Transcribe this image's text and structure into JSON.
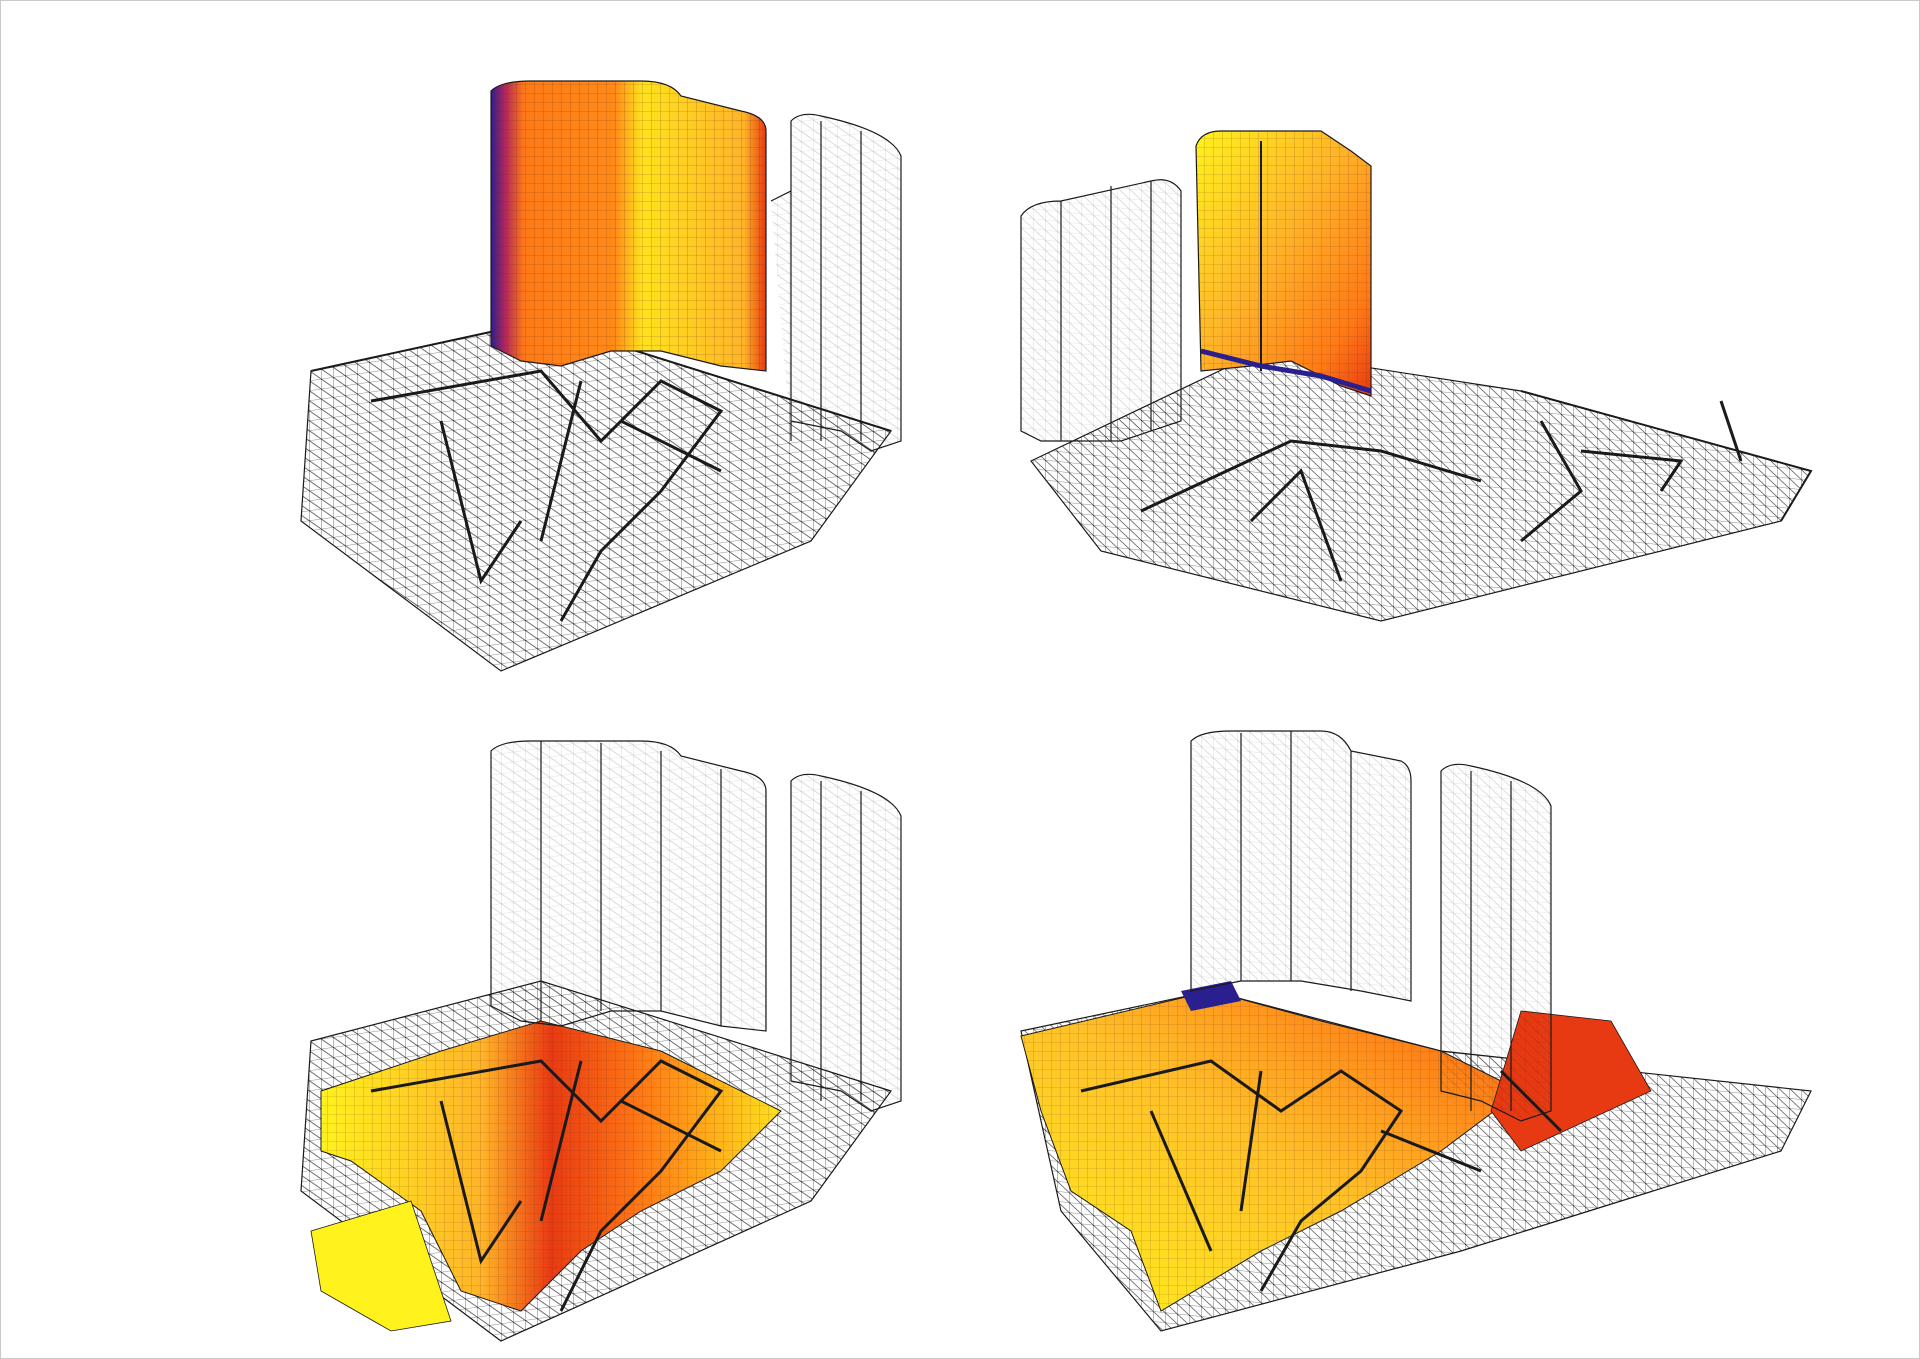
{
  "figure": {
    "panels": [
      {
        "id": "tl",
        "view": "front",
        "highlight": "tall-slab-facade"
      },
      {
        "id": "tr",
        "view": "rear",
        "highlight": "tall-slab-facade"
      },
      {
        "id": "bl",
        "view": "front",
        "highlight": "ground-paths"
      },
      {
        "id": "br",
        "view": "rear",
        "highlight": "ground-paths"
      }
    ],
    "colormap": [
      "#2a1f8f",
      "#b0255f",
      "#e83a12",
      "#ff7a16",
      "#ffb428",
      "#fff21d"
    ],
    "wire_color": "#1a1a1a",
    "background": "#ffffff"
  }
}
